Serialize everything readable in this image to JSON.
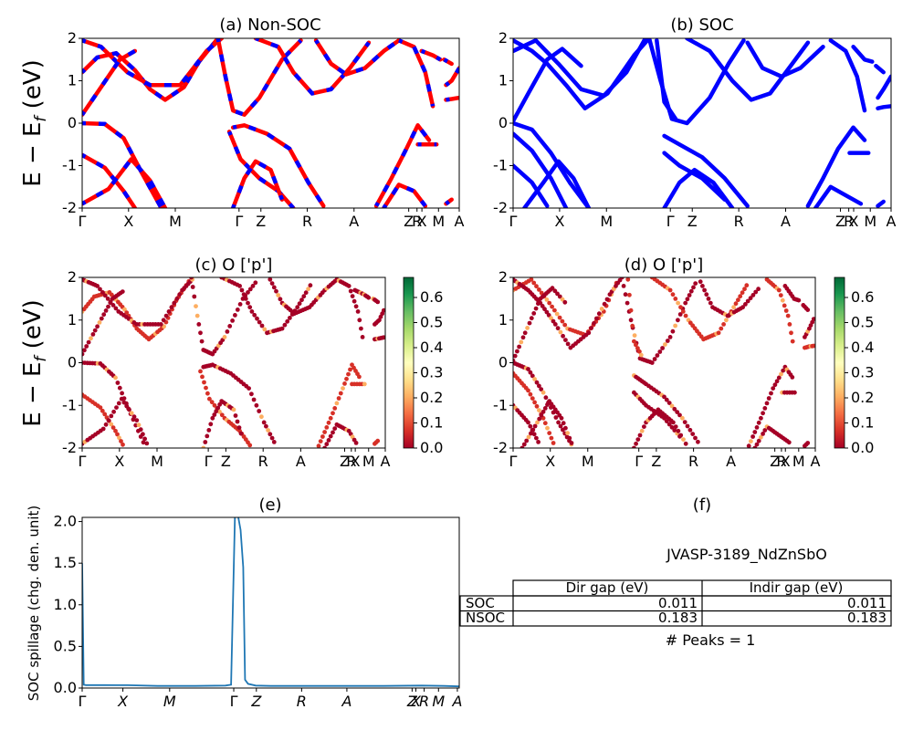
{
  "figure": {
    "ylabel_main": "E − E",
    "ylabel_sub": "f",
    "ylabel_unit": " (eV)",
    "spillage_ylabel": "SOC spillage (chg. den. unit)"
  },
  "kpath": [
    "Γ",
    "X",
    "M",
    "Γ",
    "Z",
    "R",
    "A",
    "Z",
    "R",
    "X",
    "M",
    "A"
  ],
  "kpath_e": [
    "Γ",
    "X",
    "M",
    "Γ",
    "Z",
    "R",
    "A",
    "Z",
    "X",
    "R",
    "M",
    "A"
  ],
  "panels": {
    "a": {
      "title": "(a) Non-SOC"
    },
    "b": {
      "title": "(b) SOC"
    },
    "c": {
      "title": "(c)  O ['p']"
    },
    "d": {
      "title": "(d) O ['p']"
    },
    "e": {
      "title": "(e)"
    },
    "f": {
      "title": "(f)"
    }
  },
  "colorbar": {
    "ticks": [
      "0.0",
      "0.1",
      "0.2",
      "0.3",
      "0.4",
      "0.5",
      "0.6"
    ],
    "colors": [
      "#a50026",
      "#d73027",
      "#f46d43",
      "#fdae61",
      "#fee08b",
      "#ffffbf",
      "#d9ef8b",
      "#a6d96a",
      "#66bd63",
      "#1a9850",
      "#006837"
    ]
  },
  "table": {
    "material": "JVASP-3189_NdZnSbO",
    "col_headers": [
      "Dir gap (eV)",
      "Indir gap (eV)"
    ],
    "rows": [
      {
        "label": "SOC",
        "dir": "0.011",
        "indir": "0.011"
      },
      {
        "label": "NSOC",
        "dir": "0.183",
        "indir": "0.183"
      }
    ],
    "peaks": "# Peaks = 1"
  },
  "chart_data": [
    {
      "type": "line",
      "title": "(a) Non-SOC",
      "ylabel": "E − E_f (eV)",
      "ylim": [
        -2,
        2
      ],
      "yticks": [
        -2,
        -1,
        0,
        1,
        2
      ],
      "xticklabels": [
        "Γ",
        "X",
        "M",
        "Γ",
        "Z",
        "R",
        "A",
        "Z",
        "R",
        "X",
        "M",
        "A"
      ],
      "legend": "none",
      "series_colors": [
        "#ff0000",
        "#0000ff"
      ],
      "bands": [
        [
          [
            0.0,
            1.2
          ],
          [
            0.04,
            1.55
          ],
          [
            0.09,
            1.65
          ],
          [
            0.14,
            1.25
          ],
          [
            0.18,
            0.8
          ],
          [
            0.22,
            0.55
          ],
          [
            0.27,
            0.85
          ],
          [
            0.31,
            1.45
          ],
          [
            0.36,
            2.0
          ]
        ],
        [
          [
            0.0,
            1.95
          ],
          [
            0.05,
            1.8
          ],
          [
            0.12,
            1.2
          ],
          [
            0.18,
            0.9
          ],
          [
            0.26,
            0.9
          ],
          [
            0.33,
            1.7
          ],
          [
            0.37,
            2.0
          ]
        ],
        [
          [
            0.0,
            0.2
          ],
          [
            0.05,
            0.85
          ],
          [
            0.1,
            1.5
          ],
          [
            0.14,
            1.7
          ]
        ],
        [
          [
            0.0,
            0.0
          ],
          [
            0.06,
            -0.02
          ],
          [
            0.11,
            -0.35
          ],
          [
            0.16,
            -1.2
          ],
          [
            0.21,
            -2.0
          ]
        ],
        [
          [
            0.0,
            -0.75
          ],
          [
            0.06,
            -1.05
          ],
          [
            0.11,
            -1.6
          ],
          [
            0.14,
            -2.0
          ]
        ],
        [
          [
            0.0,
            -1.9
          ],
          [
            0.07,
            -1.55
          ],
          [
            0.13,
            -0.85
          ],
          [
            0.18,
            -1.35
          ],
          [
            0.22,
            -2.0
          ]
        ],
        [
          [
            0.36,
            2.0
          ],
          [
            0.38,
            1.1
          ],
          [
            0.4,
            0.3
          ],
          [
            0.43,
            0.2
          ],
          [
            0.47,
            0.6
          ],
          [
            0.53,
            1.5
          ],
          [
            0.58,
            1.95
          ]
        ],
        [
          [
            0.4,
            -0.1
          ],
          [
            0.43,
            -0.05
          ],
          [
            0.49,
            -0.25
          ],
          [
            0.55,
            -0.6
          ],
          [
            0.6,
            -1.4
          ],
          [
            0.64,
            -1.95
          ]
        ],
        [
          [
            0.39,
            -0.2
          ],
          [
            0.42,
            -0.85
          ],
          [
            0.47,
            -1.3
          ],
          [
            0.52,
            -1.6
          ],
          [
            0.56,
            -2.0
          ]
        ],
        [
          [
            0.4,
            -2.0
          ],
          [
            0.43,
            -1.3
          ],
          [
            0.46,
            -0.9
          ],
          [
            0.5,
            -1.1
          ],
          [
            0.53,
            -1.8
          ]
        ],
        [
          [
            0.46,
            2.0
          ],
          [
            0.52,
            1.8
          ],
          [
            0.56,
            1.2
          ],
          [
            0.61,
            0.7
          ],
          [
            0.66,
            0.8
          ],
          [
            0.71,
            1.3
          ],
          [
            0.76,
            1.9
          ]
        ],
        [
          [
            0.62,
            1.95
          ],
          [
            0.66,
            1.4
          ],
          [
            0.7,
            1.15
          ],
          [
            0.75,
            1.3
          ],
          [
            0.8,
            1.7
          ],
          [
            0.84,
            1.95
          ]
        ],
        [
          [
            0.78,
            -1.95
          ],
          [
            0.82,
            -1.3
          ],
          [
            0.86,
            -0.6
          ],
          [
            0.89,
            -0.05
          ],
          [
            0.92,
            -0.4
          ]
        ],
        [
          [
            0.8,
            -2.0
          ],
          [
            0.84,
            -1.45
          ],
          [
            0.88,
            -1.6
          ],
          [
            0.91,
            -1.95
          ]
        ],
        [
          [
            0.84,
            1.95
          ],
          [
            0.88,
            1.8
          ],
          [
            0.91,
            1.2
          ],
          [
            0.93,
            0.4
          ]
        ],
        [
          [
            0.9,
            1.7
          ],
          [
            0.93,
            1.6
          ],
          [
            0.95,
            1.5
          ]
        ],
        [
          [
            0.89,
            -0.5
          ],
          [
            0.94,
            -0.5
          ]
        ],
        [
          [
            0.965,
            0.9
          ],
          [
            0.98,
            1.0
          ],
          [
            1.0,
            1.3
          ]
        ],
        [
          [
            0.96,
            1.5
          ],
          [
            0.98,
            1.4
          ]
        ],
        [
          [
            0.965,
            0.55
          ],
          [
            0.98,
            0.57
          ],
          [
            1.0,
            0.6
          ]
        ],
        [
          [
            0.965,
            -1.9
          ],
          [
            0.98,
            -1.8
          ]
        ]
      ]
    },
    {
      "type": "line",
      "title": "(b) SOC",
      "ylim": [
        -2,
        2
      ],
      "yticks": [
        -2,
        -1,
        0,
        1,
        2
      ],
      "xticklabels": [
        "Γ",
        "X",
        "M",
        "Γ",
        "Z",
        "R",
        "A",
        "Z",
        "R",
        "X",
        "M",
        "A"
      ],
      "legend": "none",
      "series_colors": [
        "#0000ff"
      ],
      "bands": [
        [
          [
            0.0,
            1.7
          ],
          [
            0.06,
            1.95
          ],
          [
            0.12,
            1.4
          ],
          [
            0.18,
            0.8
          ],
          [
            0.24,
            0.65
          ],
          [
            0.3,
            1.2
          ],
          [
            0.35,
            2.0
          ]
        ],
        [
          [
            0.0,
            1.95
          ],
          [
            0.05,
            1.7
          ],
          [
            0.09,
            1.4
          ],
          [
            0.14,
            0.9
          ],
          [
            0.19,
            0.35
          ],
          [
            0.25,
            0.7
          ],
          [
            0.32,
            1.6
          ],
          [
            0.36,
            2.0
          ]
        ],
        [
          [
            0.0,
            0.05
          ],
          [
            0.04,
            0.7
          ],
          [
            0.09,
            1.5
          ],
          [
            0.13,
            1.75
          ],
          [
            0.18,
            1.35
          ]
        ],
        [
          [
            0.0,
            0.0
          ],
          [
            0.05,
            -0.15
          ],
          [
            0.1,
            -0.7
          ],
          [
            0.15,
            -1.4
          ],
          [
            0.2,
            -2.0
          ]
        ],
        [
          [
            0.0,
            -0.25
          ],
          [
            0.05,
            -0.65
          ],
          [
            0.1,
            -1.3
          ],
          [
            0.14,
            -2.0
          ]
        ],
        [
          [
            0.0,
            -1.0
          ],
          [
            0.05,
            -1.4
          ],
          [
            0.09,
            -1.95
          ]
        ],
        [
          [
            0.03,
            -2.0
          ],
          [
            0.08,
            -1.4
          ],
          [
            0.12,
            -0.9
          ],
          [
            0.16,
            -1.3
          ],
          [
            0.2,
            -2.0
          ]
        ],
        [
          [
            0.36,
            2.0
          ],
          [
            0.39,
            1.0
          ],
          [
            0.42,
            0.1
          ],
          [
            0.46,
            0.0
          ],
          [
            0.52,
            0.6
          ],
          [
            0.57,
            1.4
          ],
          [
            0.61,
            1.95
          ]
        ],
        [
          [
            0.38,
            1.95
          ],
          [
            0.4,
            0.5
          ],
          [
            0.43,
            0.1
          ]
        ],
        [
          [
            0.4,
            -0.3
          ],
          [
            0.44,
            -0.5
          ],
          [
            0.5,
            -0.8
          ],
          [
            0.56,
            -1.3
          ],
          [
            0.62,
            -1.95
          ]
        ],
        [
          [
            0.4,
            -0.7
          ],
          [
            0.44,
            -1.0
          ],
          [
            0.5,
            -1.3
          ],
          [
            0.56,
            -1.8
          ]
        ],
        [
          [
            0.4,
            -2.0
          ],
          [
            0.44,
            -1.4
          ],
          [
            0.48,
            -1.1
          ],
          [
            0.53,
            -1.4
          ],
          [
            0.58,
            -2.0
          ]
        ],
        [
          [
            0.46,
            2.0
          ],
          [
            0.52,
            1.7
          ],
          [
            0.58,
            1.0
          ],
          [
            0.63,
            0.55
          ],
          [
            0.68,
            0.7
          ],
          [
            0.73,
            1.3
          ],
          [
            0.78,
            1.9
          ]
        ],
        [
          [
            0.62,
            1.9
          ],
          [
            0.66,
            1.3
          ],
          [
            0.71,
            1.1
          ],
          [
            0.76,
            1.3
          ],
          [
            0.82,
            1.8
          ]
        ],
        [
          [
            0.78,
            -1.95
          ],
          [
            0.82,
            -1.3
          ],
          [
            0.86,
            -0.6
          ],
          [
            0.9,
            -0.1
          ],
          [
            0.93,
            -0.4
          ]
        ],
        [
          [
            0.8,
            -2.0
          ],
          [
            0.84,
            -1.5
          ],
          [
            0.88,
            -1.7
          ],
          [
            0.92,
            -1.9
          ]
        ],
        [
          [
            0.84,
            1.95
          ],
          [
            0.88,
            1.7
          ],
          [
            0.91,
            1.1
          ],
          [
            0.93,
            0.3
          ]
        ],
        [
          [
            0.9,
            1.8
          ],
          [
            0.93,
            1.5
          ],
          [
            0.95,
            1.45
          ]
        ],
        [
          [
            0.89,
            -0.7
          ],
          [
            0.94,
            -0.7
          ]
        ],
        [
          [
            0.965,
            0.6
          ],
          [
            0.98,
            0.8
          ],
          [
            1.0,
            1.1
          ]
        ],
        [
          [
            0.965,
            0.35
          ],
          [
            0.98,
            0.38
          ],
          [
            1.0,
            0.4
          ]
        ],
        [
          [
            0.96,
            1.35
          ],
          [
            0.98,
            1.2
          ]
        ],
        [
          [
            0.965,
            -1.95
          ],
          [
            0.98,
            -1.85
          ]
        ]
      ]
    },
    {
      "type": "scatter",
      "title": "(c)  O ['p']",
      "ylim": [
        -2,
        2
      ],
      "yticks": [
        -2,
        -1,
        0,
        1,
        2
      ],
      "xticklabels": [
        "Γ",
        "X",
        "M",
        "Γ",
        "Z",
        "R",
        "A",
        "Z",
        "R",
        "X",
        "M",
        "A"
      ],
      "colorbar_range": [
        0,
        0.68
      ],
      "note": "points follow the (a) band paths, colored by O-p weight"
    },
    {
      "type": "scatter",
      "title": "(d) O ['p']",
      "ylim": [
        -2,
        2
      ],
      "yticks": [
        -2,
        -1,
        0,
        1,
        2
      ],
      "xticklabels": [
        "Γ",
        "X",
        "M",
        "Γ",
        "Z",
        "R",
        "A",
        "Z",
        "R",
        "X",
        "M",
        "A"
      ],
      "colorbar_range": [
        0,
        0.68
      ],
      "note": "points follow the (b) band paths, colored by O-p weight"
    },
    {
      "type": "line",
      "title": "(e)",
      "ylabel": "SOC spillage (chg. den. unit)",
      "ylim": [
        0,
        2.05
      ],
      "yticks": [
        0.0,
        0.5,
        1.0,
        1.5,
        2.0
      ],
      "xticklabels": [
        "Γ",
        "X",
        "M",
        "Γ",
        "Z",
        "R",
        "A",
        "Z",
        "X",
        "R",
        "M",
        "A"
      ],
      "series_colors": [
        "#1f77b4"
      ],
      "x": [
        0.0,
        0.004,
        0.01,
        0.06,
        0.12,
        0.2,
        0.3,
        0.38,
        0.395,
        0.405,
        0.412,
        0.42,
        0.427,
        0.432,
        0.44,
        0.46,
        0.5,
        0.6,
        0.7,
        0.8,
        0.9,
        0.96,
        1.0
      ],
      "y": [
        1.5,
        0.04,
        0.035,
        0.035,
        0.034,
        0.025,
        0.025,
        0.03,
        0.04,
        2.05,
        2.1,
        1.9,
        1.45,
        0.1,
        0.05,
        0.03,
        0.025,
        0.025,
        0.025,
        0.025,
        0.03,
        0.025,
        0.02
      ]
    }
  ]
}
